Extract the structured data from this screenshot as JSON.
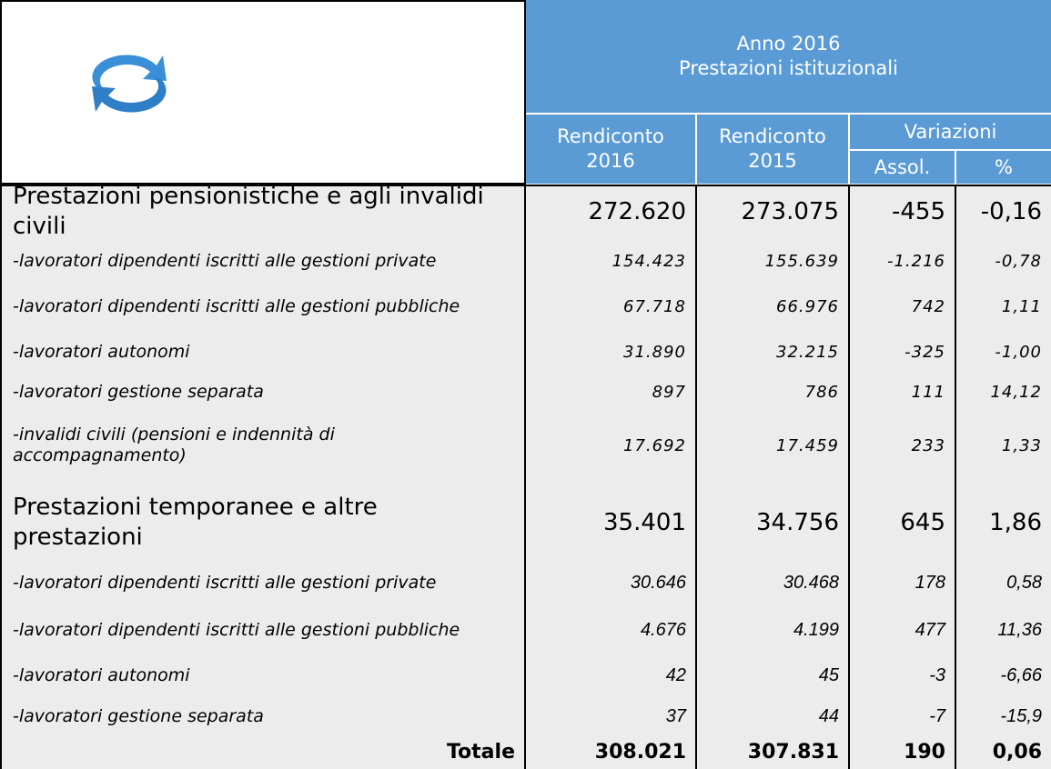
{
  "header": {
    "period": "Anno 2016",
    "subject": "Prestazioni istituzionali",
    "columns": [
      "Rendiconto\n2016",
      "Rendiconto\n2015"
    ],
    "variations": "Variazioni",
    "subcolumns": [
      "Assol.",
      "%"
    ]
  },
  "rows": [
    {
      "label": "Prestazioni pensionistiche e agli invalidi civili",
      "values": [
        "272.620",
        "273.075",
        "-455",
        "-0,16"
      ]
    },
    {
      "label": "-lavoratori dipendenti iscritti alle gestioni private",
      "values": [
        "154.423",
        "155.639",
        "-1.216",
        "-0,78"
      ]
    },
    {
      "label": "-lavoratori dipendenti iscritti alle gestioni pubbliche",
      "values": [
        "67.718",
        "66.976",
        "742",
        "1,11"
      ]
    },
    {
      "label": "-lavoratori autonomi",
      "values": [
        "31.890",
        "32.215",
        "-325",
        "-1,00"
      ]
    },
    {
      "label": "-lavoratori gestione separata",
      "values": [
        "897",
        "786",
        "111",
        "14,12"
      ]
    },
    {
      "label": "-invalidi civili (pensioni e indennità di accompagnamento)",
      "values": [
        "17.692",
        "17.459",
        "233",
        "1,33"
      ]
    },
    {
      "label": "Prestazioni temporanee e altre prestazioni",
      "values": [
        "35.401",
        "34.756",
        "645",
        "1,86"
      ]
    },
    {
      "label": "-lavoratori dipendenti iscritti alle gestioni private",
      "values": [
        "30.646",
        "30.468",
        "178",
        "0,58"
      ]
    },
    {
      "label": "-lavoratori dipendenti iscritti alle gestioni pubbliche",
      "values": [
        "4.676",
        "4.199",
        "477",
        "11,36"
      ]
    },
    {
      "label": "-lavoratori autonomi",
      "values": [
        "42",
        "45",
        "-3",
        "-6,66"
      ]
    },
    {
      "label": "-lavoratori gestione separata",
      "values": [
        "37",
        "44",
        "-7",
        "-15,9"
      ]
    },
    {
      "label": "Totale",
      "values": [
        "308.021",
        "307.831",
        "190",
        "0,06"
      ]
    }
  ]
}
